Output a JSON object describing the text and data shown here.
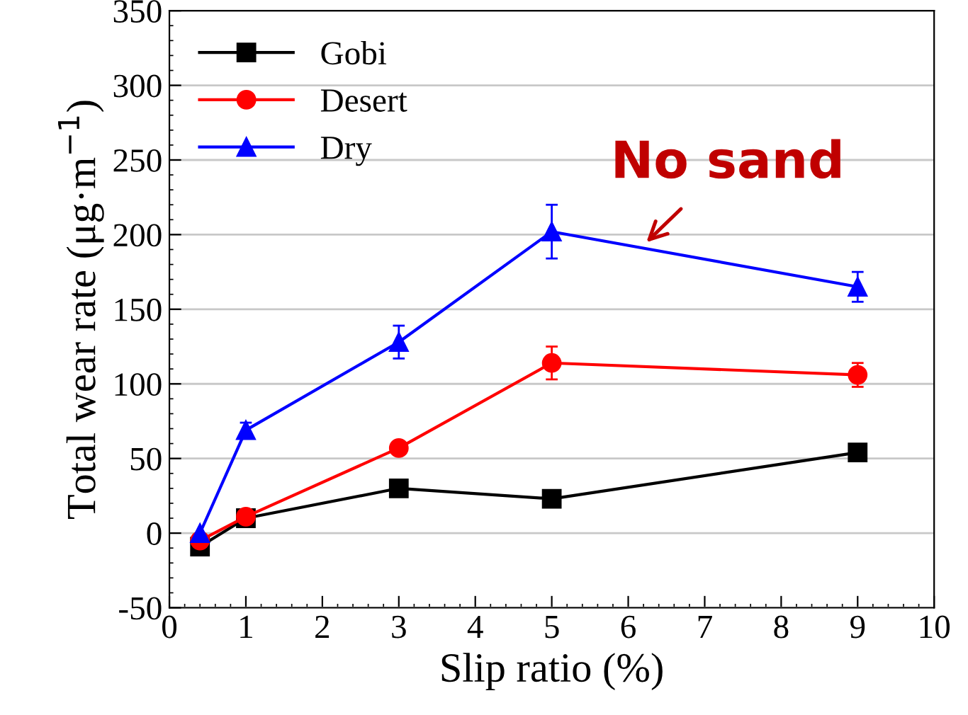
{
  "chart_data": {
    "type": "line",
    "xlabel": "Slip ratio (%)",
    "ylabel": "Total wear rate (μg·m$^{−1}$)",
    "x": [
      0.4,
      1,
      3,
      5,
      9
    ],
    "series": [
      {
        "name": "Gobi",
        "color": "#000000",
        "marker": "square",
        "values": [
          -9,
          10,
          30,
          23,
          54
        ]
      },
      {
        "name": "Desert",
        "color": "#ff0000",
        "marker": "circle",
        "values": [
          -5,
          11,
          57,
          114,
          106
        ],
        "errors": [
          null,
          null,
          null,
          11,
          8
        ]
      },
      {
        "name": "Dry",
        "color": "#0000ff",
        "marker": "triangle",
        "values": [
          0,
          69,
          128,
          202,
          165
        ],
        "errors": [
          null,
          5,
          11,
          18,
          10
        ]
      }
    ],
    "xlim": [
      0,
      10
    ],
    "xticks": [
      0,
      1,
      2,
      3,
      4,
      5,
      6,
      7,
      8,
      9,
      10
    ],
    "ylim": [
      -50,
      350
    ],
    "yticks": [
      -50,
      0,
      50,
      100,
      150,
      200,
      250,
      300,
      350
    ],
    "grid": "y",
    "legend": "top left",
    "line_style": "solid",
    "annotations": [
      {
        "text": "No sand",
        "x": 6.2,
        "y": 193
      }
    ]
  }
}
